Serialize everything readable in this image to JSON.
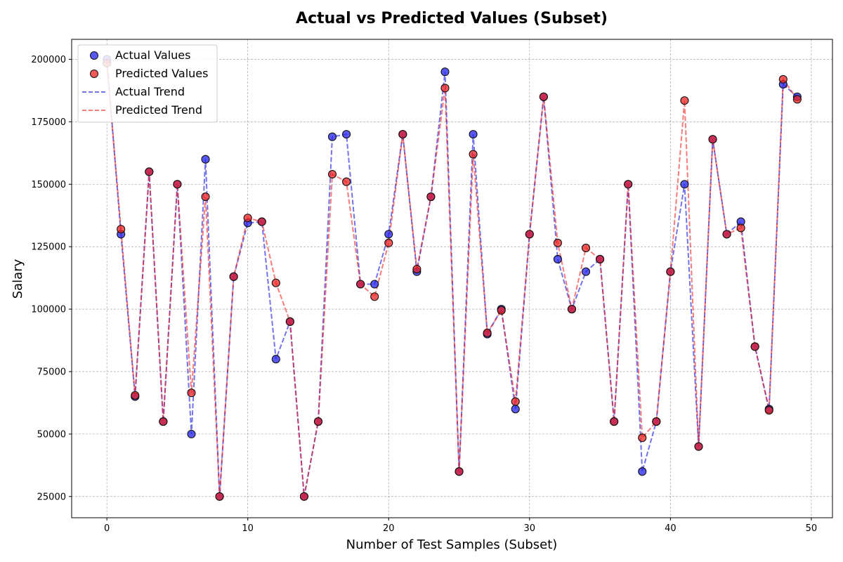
{
  "chart_data": {
    "type": "scatter",
    "title": "Actual vs Predicted Values (Subset)",
    "xlabel": "Number of Test Samples (Subset)",
    "ylabel": "Salary",
    "xlim": [
      -2.5,
      51.5
    ],
    "ylim": [
      16500,
      208000
    ],
    "x_ticks": [
      0,
      10,
      20,
      30,
      40,
      50
    ],
    "y_ticks": [
      25000,
      50000,
      75000,
      100000,
      125000,
      150000,
      175000,
      200000
    ],
    "grid": true,
    "legend_position": "top-left",
    "x": [
      0,
      1,
      2,
      3,
      4,
      5,
      6,
      7,
      8,
      9,
      10,
      11,
      12,
      13,
      14,
      15,
      16,
      17,
      18,
      19,
      20,
      21,
      22,
      23,
      24,
      25,
      26,
      27,
      28,
      29,
      30,
      31,
      32,
      33,
      34,
      35,
      36,
      37,
      38,
      39,
      40,
      41,
      42,
      43,
      44,
      45,
      46,
      47,
      48,
      49
    ],
    "series": [
      {
        "name": "Actual Values",
        "trend_name": "Actual Trend",
        "color": "#0000dd",
        "values": [
          200000,
          130000,
          65000,
          155000,
          55000,
          150000,
          50000,
          160000,
          25000,
          113000,
          134500,
          135000,
          80000,
          95000,
          25000,
          55000,
          169000,
          170000,
          110000,
          110000,
          130000,
          170000,
          115000,
          145000,
          195000,
          35000,
          170000,
          90000,
          100000,
          60000,
          130000,
          185000,
          120000,
          100000,
          115000,
          120000,
          55000,
          150000,
          35000,
          55000,
          115000,
          150000,
          45000,
          168000,
          130000,
          135000,
          85000,
          60000,
          190000,
          185000
        ]
      },
      {
        "name": "Predicted Values",
        "trend_name": "Predicted Trend",
        "color": "#ee1111",
        "values": [
          198500,
          132000,
          65500,
          155000,
          55000,
          150000,
          66500,
          145000,
          25000,
          113000,
          136500,
          135000,
          110500,
          95000,
          25000,
          55000,
          154000,
          151000,
          110000,
          105000,
          126500,
          170000,
          116000,
          145000,
          188500,
          35000,
          162000,
          90500,
          99500,
          63000,
          130000,
          185000,
          126500,
          100000,
          124500,
          120000,
          55000,
          150000,
          48500,
          55000,
          115000,
          183500,
          45000,
          168000,
          130000,
          132500,
          85000,
          59500,
          192000,
          184000
        ]
      }
    ]
  }
}
